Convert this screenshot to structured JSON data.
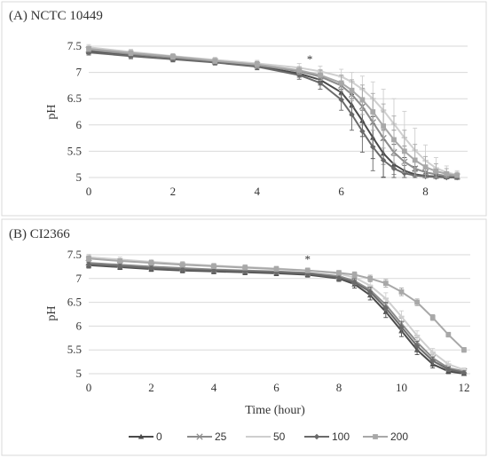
{
  "figure": {
    "legend": [
      {
        "label": "0",
        "color": "#4a4a4a",
        "marker": "triangle"
      },
      {
        "label": "25",
        "color": "#8c8c8c",
        "marker": "x"
      },
      {
        "label": "50",
        "color": "#cfcfcf",
        "marker": "dash"
      },
      {
        "label": "100",
        "color": "#6a6a6a",
        "marker": "diamond"
      },
      {
        "label": "200",
        "color": "#a8a8a8",
        "marker": "square"
      }
    ]
  },
  "chart_data": [
    {
      "type": "line",
      "title": "(A) NCTC 10449",
      "xlabel": "",
      "ylabel": "pH",
      "xlim": [
        0,
        9
      ],
      "ylim": [
        5,
        7.5
      ],
      "xticks": [
        0,
        2,
        4,
        6,
        8
      ],
      "yticks": [
        5,
        5.5,
        6,
        6.5,
        7,
        7.5
      ],
      "ytick_labels": [
        "5",
        "5.5",
        "6",
        "6.5",
        "7",
        "7.5"
      ],
      "grid": "horizontal",
      "annotations": [
        {
          "text": "*",
          "x": 5.25,
          "y": 7.18
        }
      ],
      "x": [
        0,
        1,
        2,
        3,
        4,
        5,
        5.5,
        6,
        6.25,
        6.5,
        6.75,
        7,
        7.25,
        7.5,
        7.75,
        8,
        8.25,
        8.5,
        8.75
      ],
      "series": [
        {
          "name": "0",
          "values": [
            7.4,
            7.33,
            7.26,
            7.2,
            7.12,
            6.98,
            6.86,
            6.62,
            6.38,
            6.08,
            5.76,
            5.46,
            5.25,
            5.13,
            5.06,
            5.03,
            5.02,
            5.01,
            5.0
          ],
          "error": [
            0.05,
            0.05,
            0.05,
            0.05,
            0.06,
            0.07,
            0.1,
            0.14,
            0.2,
            0.3,
            0.4,
            0.45,
            0.38,
            0.25,
            0.15,
            0.08,
            0.05,
            0.04,
            0.03
          ]
        },
        {
          "name": "25",
          "values": [
            7.43,
            7.35,
            7.28,
            7.21,
            7.14,
            7.02,
            6.92,
            6.75,
            6.58,
            6.35,
            6.05,
            5.75,
            5.48,
            5.3,
            5.17,
            5.1,
            5.06,
            5.03,
            5.02
          ],
          "error": [
            0.05,
            0.05,
            0.05,
            0.05,
            0.06,
            0.08,
            0.12,
            0.18,
            0.25,
            0.35,
            0.45,
            0.5,
            0.42,
            0.3,
            0.2,
            0.12,
            0.08,
            0.05,
            0.04
          ]
        },
        {
          "name": "50",
          "values": [
            7.48,
            7.39,
            7.31,
            7.24,
            7.17,
            7.09,
            7.02,
            6.92,
            6.82,
            6.68,
            6.5,
            6.28,
            6.02,
            5.76,
            5.52,
            5.32,
            5.18,
            5.1,
            5.05
          ],
          "error": [
            0.05,
            0.05,
            0.05,
            0.05,
            0.06,
            0.08,
            0.1,
            0.14,
            0.18,
            0.25,
            0.32,
            0.4,
            0.48,
            0.5,
            0.42,
            0.3,
            0.2,
            0.12,
            0.08
          ]
        },
        {
          "name": "100",
          "values": [
            7.38,
            7.31,
            7.25,
            7.19,
            7.11,
            6.95,
            6.8,
            6.48,
            6.2,
            5.88,
            5.58,
            5.33,
            5.17,
            5.08,
            5.04,
            5.02,
            5.01,
            5.0,
            5.0
          ],
          "error": [
            0.05,
            0.05,
            0.05,
            0.05,
            0.06,
            0.08,
            0.12,
            0.2,
            0.3,
            0.4,
            0.45,
            0.38,
            0.25,
            0.15,
            0.08,
            0.05,
            0.04,
            0.03,
            0.03
          ]
        },
        {
          "name": "200",
          "values": [
            7.45,
            7.37,
            7.3,
            7.22,
            7.15,
            7.04,
            6.95,
            6.8,
            6.66,
            6.48,
            6.25,
            5.98,
            5.72,
            5.5,
            5.33,
            5.2,
            5.12,
            5.07,
            5.04
          ],
          "error": [
            0.05,
            0.05,
            0.05,
            0.05,
            0.06,
            0.07,
            0.1,
            0.15,
            0.2,
            0.28,
            0.35,
            0.42,
            0.45,
            0.4,
            0.3,
            0.2,
            0.14,
            0.1,
            0.06
          ]
        }
      ]
    },
    {
      "type": "line",
      "title": "(B) CI2366",
      "xlabel": "Time (hour)",
      "ylabel": "pH",
      "xlim": [
        0,
        12.2
      ],
      "ylim": [
        5,
        7.5
      ],
      "xticks": [
        0,
        2,
        4,
        6,
        8,
        10,
        12
      ],
      "yticks": [
        5,
        5.5,
        6,
        6.5,
        7,
        7.5
      ],
      "ytick_labels": [
        "5",
        "5.5",
        "6",
        "6.5",
        "7",
        "7.5"
      ],
      "grid": "horizontal",
      "annotations": [
        {
          "text": "*",
          "x": 7.0,
          "y": 7.32
        }
      ],
      "x": [
        0,
        1,
        2,
        3,
        4,
        5,
        6,
        7,
        8,
        8.5,
        9,
        9.5,
        10,
        10.5,
        11,
        11.5,
        12
      ],
      "series": [
        {
          "name": "0",
          "values": [
            7.28,
            7.24,
            7.2,
            7.17,
            7.15,
            7.13,
            7.11,
            7.08,
            7.0,
            6.88,
            6.65,
            6.3,
            5.9,
            5.5,
            5.2,
            5.05,
            5.0
          ],
          "error": [
            0.06,
            0.05,
            0.05,
            0.05,
            0.05,
            0.05,
            0.05,
            0.05,
            0.06,
            0.08,
            0.1,
            0.12,
            0.12,
            0.1,
            0.08,
            0.05,
            0.04
          ]
        },
        {
          "name": "25",
          "values": [
            7.33,
            7.29,
            7.25,
            7.22,
            7.19,
            7.17,
            7.15,
            7.12,
            7.05,
            6.95,
            6.76,
            6.45,
            6.05,
            5.66,
            5.33,
            5.12,
            5.05
          ],
          "error": [
            0.06,
            0.05,
            0.05,
            0.05,
            0.05,
            0.05,
            0.05,
            0.05,
            0.06,
            0.08,
            0.1,
            0.12,
            0.12,
            0.1,
            0.08,
            0.06,
            0.04
          ]
        },
        {
          "name": "50",
          "values": [
            7.45,
            7.4,
            7.35,
            7.31,
            7.27,
            7.24,
            7.21,
            7.17,
            7.1,
            7.02,
            6.85,
            6.58,
            6.2,
            5.8,
            5.45,
            5.2,
            5.08
          ],
          "error": [
            0.06,
            0.05,
            0.05,
            0.05,
            0.05,
            0.05,
            0.05,
            0.05,
            0.06,
            0.08,
            0.1,
            0.12,
            0.12,
            0.1,
            0.08,
            0.06,
            0.04
          ]
        },
        {
          "name": "100",
          "values": [
            7.3,
            7.26,
            7.22,
            7.19,
            7.17,
            7.15,
            7.13,
            7.1,
            7.02,
            6.92,
            6.72,
            6.38,
            5.98,
            5.58,
            5.27,
            5.09,
            5.02
          ],
          "error": [
            0.06,
            0.05,
            0.05,
            0.05,
            0.05,
            0.05,
            0.05,
            0.05,
            0.06,
            0.08,
            0.1,
            0.12,
            0.12,
            0.1,
            0.08,
            0.05,
            0.04
          ]
        },
        {
          "name": "200",
          "values": [
            7.42,
            7.37,
            7.33,
            7.29,
            7.26,
            7.23,
            7.2,
            7.17,
            7.12,
            7.08,
            7.0,
            6.9,
            6.72,
            6.5,
            6.18,
            5.82,
            5.5
          ],
          "error": [
            0.06,
            0.05,
            0.05,
            0.05,
            0.05,
            0.05,
            0.05,
            0.05,
            0.05,
            0.06,
            0.07,
            0.08,
            0.08,
            0.07,
            0.06,
            0.05,
            0.05
          ]
        }
      ]
    }
  ]
}
